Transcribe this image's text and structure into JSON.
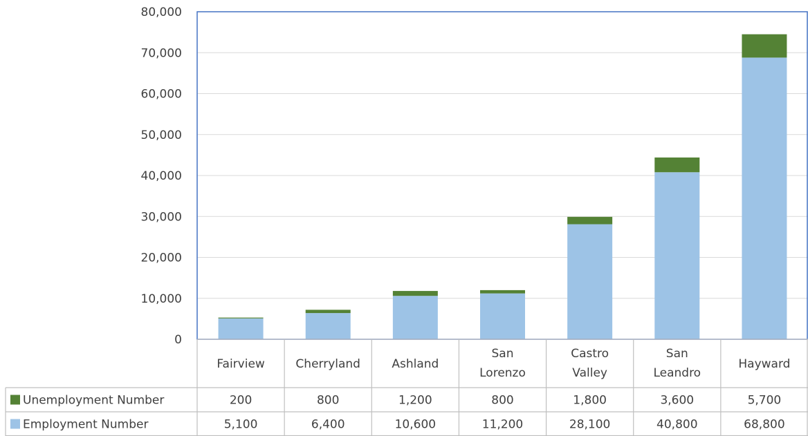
{
  "chart_data": {
    "type": "bar",
    "stacked": true,
    "data_table": true,
    "categories": [
      [
        "Fairview"
      ],
      [
        "Cherryland"
      ],
      [
        "Ashland"
      ],
      [
        "San",
        "Lorenzo"
      ],
      [
        "Castro",
        "Valley"
      ],
      [
        "San",
        "Leandro"
      ],
      [
        "Hayward"
      ]
    ],
    "series": [
      {
        "name": "Employment Number",
        "color": "#9dc3e6",
        "values": [
          5100,
          6400,
          10600,
          11200,
          28100,
          40800,
          68800
        ],
        "labels": [
          "5,100",
          "6,400",
          "10,600",
          "11,200",
          "28,100",
          "40,800",
          "68,800"
        ]
      },
      {
        "name": "Unemployment Number",
        "color": "#548235",
        "values": [
          200,
          800,
          1200,
          800,
          1800,
          3600,
          5700
        ],
        "labels": [
          "200",
          "800",
          "1,200",
          "800",
          "1,800",
          "3,600",
          "5,700"
        ]
      }
    ],
    "table_row_order": [
      "Unemployment Number",
      "Employment Number"
    ],
    "ylim": [
      0,
      80000
    ],
    "yticks": [
      0,
      10000,
      20000,
      30000,
      40000,
      50000,
      60000,
      70000,
      80000
    ],
    "ytick_labels": [
      "0",
      "10,000",
      "20,000",
      "30,000",
      "40,000",
      "50,000",
      "60,000",
      "70,000",
      "80,000"
    ],
    "grid": true,
    "grid_color": "#d9d9d9",
    "plot_border_color": "#4472c4",
    "title": "",
    "xlabel": "",
    "ylabel": ""
  }
}
